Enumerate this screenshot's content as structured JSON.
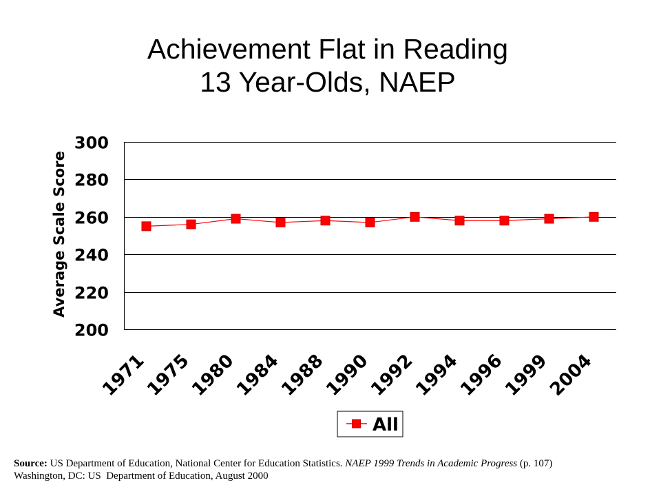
{
  "chart_data": {
    "type": "line",
    "title": "Achievement Flat in Reading",
    "subtitle": "13 Year-Olds, NAEP",
    "categories": [
      "1971",
      "1975",
      "1980",
      "1984",
      "1988",
      "1990",
      "1992",
      "1994",
      "1996",
      "1999",
      "2004"
    ],
    "series": [
      {
        "name": "All",
        "values": [
          255,
          256,
          259,
          257,
          258,
          257,
          260,
          258,
          258,
          259,
          260
        ],
        "color": "#ff0000"
      }
    ],
    "xlabel": "",
    "ylabel": "Average Scale Score",
    "ylim": [
      200,
      300
    ],
    "yticks": [
      200,
      220,
      240,
      260,
      280,
      300
    ],
    "grid": true,
    "legend": "bottom-center",
    "marker": "square"
  },
  "source": {
    "label": "Source:",
    "publisher": "US Department of Education, National Center for Education Statistics.",
    "publication": "NAEP 1999 Trends in Academic Progress",
    "page": "(p. 107)",
    "location": "Washington, DC: US  Department of Education, August 2000"
  }
}
